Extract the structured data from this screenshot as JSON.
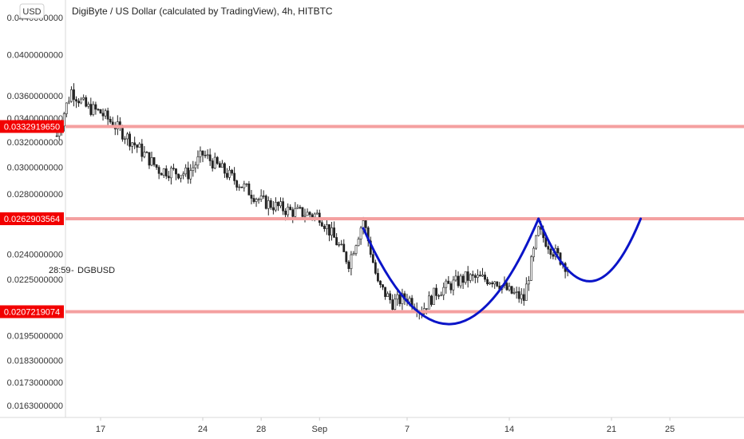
{
  "title": "DigiByte / US Dollar (calculated by TradingView), 4h, HITBTC",
  "currency_button": "USD",
  "symbol": "DGBUSD",
  "countdown": "28:59",
  "colors": {
    "level_line": "#f4a0a0",
    "level_badge": "#f20000",
    "pattern_curve": "#0a14c8",
    "candle_outline": "#222222",
    "candle_down": "#222222",
    "candle_up": "#ffffff"
  },
  "chart_data": {
    "type": "candlestick",
    "ylim": [
      0.0155,
      0.045
    ],
    "y_scale": "log",
    "y_ticks": [
      "0.0440000000",
      "0.0400000000",
      "0.0360000000",
      "0.0340000000",
      "0.0320000000",
      "0.0300000000",
      "0.0280000000",
      "0.0240000000",
      "0.0225000000",
      "0.0195000000",
      "0.0183000000",
      "0.0173000000",
      "0.0163000000"
    ],
    "x_ticks": [
      "17",
      "24",
      "28",
      "Sep",
      "7",
      "14",
      "21",
      "25"
    ],
    "levels": [
      {
        "label": "0.0332919650",
        "value": 0.033292
      },
      {
        "label": "0.0262903564",
        "value": 0.02629
      },
      {
        "label": "0.0207219074",
        "value": 0.020722
      }
    ],
    "annotations": [
      {
        "type": "curve",
        "description": "rounded bottom",
        "from": "Sep 4",
        "to": "Sep 16",
        "low": 0.0202
      },
      {
        "type": "curve",
        "description": "handle",
        "from": "Sep 16",
        "to": "Sep 23",
        "low": 0.0224
      }
    ],
    "price_path": [
      {
        "date": "Aug 14",
        "price": 0.0325
      },
      {
        "date": "Aug 15",
        "price": 0.0365
      },
      {
        "date": "Aug 16",
        "price": 0.035
      },
      {
        "date": "Aug 17",
        "price": 0.0345
      },
      {
        "date": "Aug 19",
        "price": 0.0322
      },
      {
        "date": "Aug 21",
        "price": 0.0298
      },
      {
        "date": "Aug 23",
        "price": 0.0295
      },
      {
        "date": "Aug 24",
        "price": 0.031
      },
      {
        "date": "Aug 26",
        "price": 0.0292
      },
      {
        "date": "Aug 28",
        "price": 0.0275
      },
      {
        "date": "Aug 30",
        "price": 0.0268
      },
      {
        "date": "Sep 1",
        "price": 0.0265
      },
      {
        "date": "Sep 3",
        "price": 0.0235
      },
      {
        "date": "Sep 4",
        "price": 0.0262
      },
      {
        "date": "Sep 5",
        "price": 0.0222
      },
      {
        "date": "Sep 6",
        "price": 0.0212
      },
      {
        "date": "Sep 7",
        "price": 0.0215
      },
      {
        "date": "Sep 8",
        "price": 0.0208
      },
      {
        "date": "Sep 9",
        "price": 0.0218
      },
      {
        "date": "Sep 11",
        "price": 0.0226
      },
      {
        "date": "Sep 13",
        "price": 0.0225
      },
      {
        "date": "Sep 14",
        "price": 0.0218
      },
      {
        "date": "Sep 15",
        "price": 0.0214
      },
      {
        "date": "Sep 16",
        "price": 0.0255
      },
      {
        "date": "Sep 17",
        "price": 0.0242
      },
      {
        "date": "Sep 18",
        "price": 0.0232
      }
    ]
  }
}
